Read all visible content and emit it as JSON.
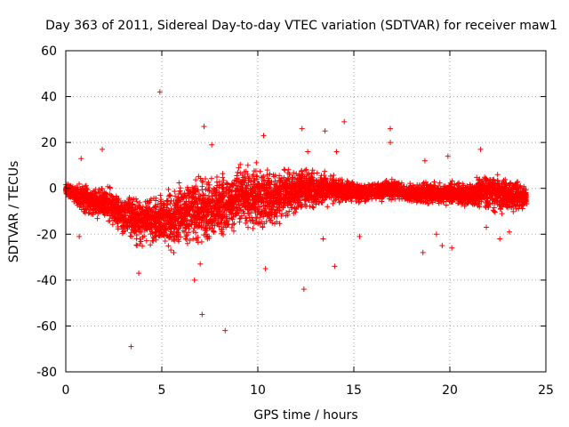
{
  "chart_data": {
    "type": "scatter",
    "title": "Day 363 of 2011, Sidereal Day-to-day VTEC variation (SDTVAR) for receiver maw1",
    "xlabel": "GPS time / hours",
    "ylabel": "SDTVAR / TECUs",
    "xlim": [
      0,
      25
    ],
    "ylim": [
      -80,
      60
    ],
    "x_ticks": [
      0,
      5,
      10,
      15,
      20,
      25
    ],
    "y_ticks": [
      -80,
      -60,
      -40,
      -20,
      0,
      20,
      40,
      60
    ],
    "grid": true,
    "marker": "+",
    "color": "#ff0000",
    "band": [
      [
        0.0,
        -4,
        3
      ],
      [
        0.5,
        -9,
        4
      ],
      [
        1.0,
        -12,
        3
      ],
      [
        1.5,
        -14,
        2
      ],
      [
        2.0,
        -15,
        2
      ],
      [
        2.5,
        -17,
        0
      ],
      [
        3.0,
        -22,
        0
      ],
      [
        3.5,
        -25,
        0
      ],
      [
        4.0,
        -27,
        -1
      ],
      [
        4.5,
        -27,
        0
      ],
      [
        5.0,
        -28,
        1
      ],
      [
        5.5,
        -29,
        3
      ],
      [
        6.0,
        -28,
        6
      ],
      [
        6.5,
        -27,
        8
      ],
      [
        7.0,
        -27,
        9
      ],
      [
        7.5,
        -27,
        8
      ],
      [
        8.0,
        -24,
        9
      ],
      [
        8.5,
        -22,
        10
      ],
      [
        9.0,
        -21,
        12
      ],
      [
        9.5,
        -21,
        13
      ],
      [
        10.0,
        -20,
        13
      ],
      [
        10.5,
        -19,
        12
      ],
      [
        11.0,
        -17,
        10
      ],
      [
        11.5,
        -15,
        12
      ],
      [
        12.0,
        -13,
        11
      ],
      [
        12.5,
        -11,
        11
      ],
      [
        13.0,
        -10,
        9
      ],
      [
        13.5,
        -9,
        8
      ],
      [
        14.0,
        -8,
        7
      ],
      [
        14.5,
        -8,
        5
      ],
      [
        15.0,
        -7,
        4
      ],
      [
        15.5,
        -7,
        3
      ],
      [
        16.0,
        -6,
        3
      ],
      [
        16.5,
        -6,
        4
      ],
      [
        17.0,
        -6,
        5
      ],
      [
        17.5,
        -6,
        3
      ],
      [
        18.0,
        -7,
        3
      ],
      [
        18.5,
        -7,
        3
      ],
      [
        19.0,
        -8,
        4
      ],
      [
        19.5,
        -8,
        3
      ],
      [
        20.0,
        -9,
        5
      ],
      [
        20.5,
        -9,
        4
      ],
      [
        21.0,
        -10,
        3
      ],
      [
        21.5,
        -10,
        7
      ],
      [
        22.0,
        -12,
        8
      ],
      [
        22.5,
        -12,
        8
      ],
      [
        23.0,
        -13,
        6
      ],
      [
        23.5,
        -11,
        4
      ],
      [
        24.0,
        -9,
        2
      ]
    ],
    "outliers": [
      [
        4.9,
        42
      ],
      [
        14.5,
        29
      ],
      [
        7.2,
        27
      ],
      [
        12.3,
        26
      ],
      [
        16.9,
        26
      ],
      [
        13.5,
        25
      ],
      [
        10.3,
        23
      ],
      [
        7.6,
        19
      ],
      [
        16.9,
        20
      ],
      [
        1.9,
        17
      ],
      [
        21.6,
        17
      ],
      [
        14.1,
        16
      ],
      [
        12.6,
        16
      ],
      [
        0.8,
        13
      ],
      [
        19.9,
        14
      ],
      [
        18.7,
        12
      ],
      [
        3.4,
        -69
      ],
      [
        8.3,
        -62
      ],
      [
        7.1,
        -55
      ],
      [
        6.7,
        -40
      ],
      [
        12.4,
        -44
      ],
      [
        10.4,
        -35
      ],
      [
        14.0,
        -34
      ],
      [
        3.8,
        -37
      ],
      [
        7.0,
        -33
      ],
      [
        18.6,
        -28
      ],
      [
        19.6,
        -25
      ],
      [
        20.1,
        -26
      ],
      [
        0.7,
        -21
      ],
      [
        13.4,
        -22
      ],
      [
        22.6,
        -22
      ],
      [
        15.3,
        -21
      ],
      [
        23.1,
        -19
      ],
      [
        21.9,
        -17
      ],
      [
        19.3,
        -20
      ]
    ]
  }
}
